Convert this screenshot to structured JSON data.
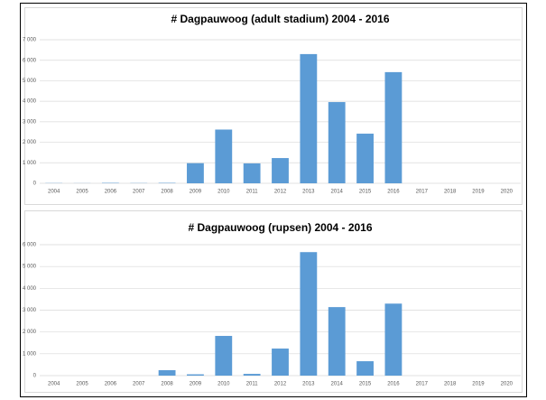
{
  "chart_data": [
    {
      "type": "bar",
      "title": "# Dagpauwoog (adult stadium) 2004 - 2016",
      "categories": [
        "2004",
        "2005",
        "2006",
        "2007",
        "2008",
        "2009",
        "2010",
        "2011",
        "2012",
        "2013",
        "2014",
        "2015",
        "2016",
        "2017",
        "2018",
        "2019",
        "2020"
      ],
      "values": [
        10,
        5,
        20,
        10,
        20,
        980,
        2620,
        970,
        1230,
        6300,
        3960,
        2420,
        5420,
        null,
        null,
        null,
        null
      ],
      "color": "#5b9bd5",
      "ylim": [
        0,
        7000
      ],
      "yticks": [
        0,
        {
          "value": 1000,
          "label": "1 000"
        },
        {
          "value": 2000,
          "label": "2 000"
        },
        {
          "value": 3000,
          "label": "3 000"
        },
        {
          "value": 4000,
          "label": "4 000"
        },
        {
          "value": 5000,
          "label": "5 000"
        },
        {
          "value": 6000,
          "label": "6 000"
        },
        {
          "value": 7000,
          "label": "7 000"
        }
      ],
      "grid": true
    },
    {
      "type": "bar",
      "title": "# Dagpauwoog (rupsen) 2004 - 2016",
      "categories": [
        "2004",
        "2005",
        "2006",
        "2007",
        "2008",
        "2009",
        "2010",
        "2011",
        "2012",
        "2013",
        "2014",
        "2015",
        "2016",
        "2017",
        "2018",
        "2019",
        "2020"
      ],
      "values": [
        0,
        0,
        0,
        0,
        250,
        60,
        1820,
        80,
        1240,
        5660,
        3140,
        660,
        3300,
        null,
        null,
        null,
        null
      ],
      "color": "#5b9bd5",
      "ylim": [
        0,
        6000
      ],
      "yticks": [
        0,
        {
          "value": 1000,
          "label": "1 000"
        },
        {
          "value": 2000,
          "label": "2 000"
        },
        {
          "value": 3000,
          "label": "3 000"
        },
        {
          "value": 4000,
          "label": "4 000"
        },
        {
          "value": 5000,
          "label": "5 000"
        },
        {
          "value": 6000,
          "label": "6 000"
        }
      ],
      "grid": true
    }
  ]
}
